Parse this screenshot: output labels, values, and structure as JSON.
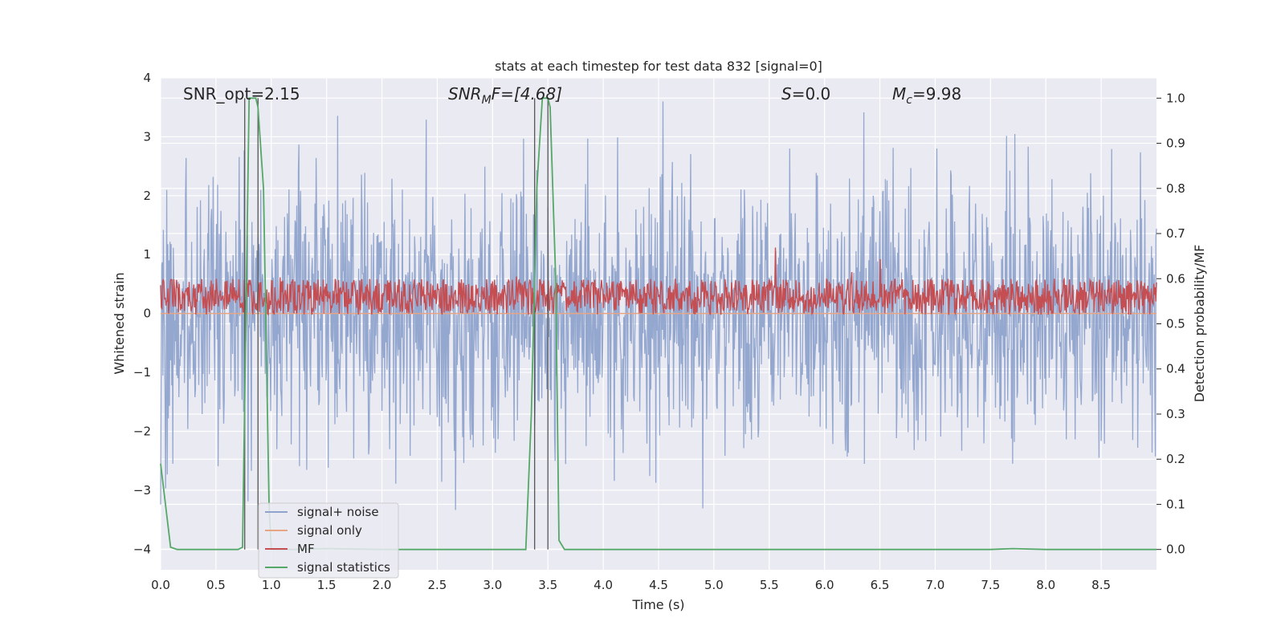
{
  "chart_data": {
    "type": "line",
    "title": "stats at each timestep for test data 832 [signal=0]",
    "xlabel": "Time (s)",
    "ylabel": "Whitened strain",
    "ylabel_right": "Detection probability/MF",
    "xlim": [
      0.0,
      9.0
    ],
    "ylim": [
      -4.35,
      4.0
    ],
    "ylim_right": [
      -0.045,
      1.045
    ],
    "x_ticks": [
      0.0,
      0.5,
      1.0,
      1.5,
      2.0,
      2.5,
      3.0,
      3.5,
      4.0,
      4.5,
      5.0,
      5.5,
      6.0,
      6.5,
      7.0,
      7.5,
      8.0,
      8.5
    ],
    "x_tick_labels": [
      "0.0",
      "0.5",
      "1.0",
      "1.5",
      "2.0",
      "2.5",
      "3.0",
      "3.5",
      "4.0",
      "4.5",
      "5.0",
      "5.5",
      "6.0",
      "6.5",
      "7.0",
      "7.5",
      "8.0",
      "8.5"
    ],
    "y_ticks": [
      -4,
      -3,
      -2,
      -1,
      0,
      1,
      2,
      3,
      4
    ],
    "y_tick_labels": [
      "−4",
      "−3",
      "−2",
      "−1",
      "0",
      "1",
      "2",
      "3",
      "4"
    ],
    "y_ticks_right": [
      0.0,
      0.1,
      0.2,
      0.3,
      0.4,
      0.5,
      0.6,
      0.7,
      0.8,
      0.9,
      1.0
    ],
    "y_tick_labels_right": [
      "0.0",
      "0.1",
      "0.2",
      "0.3",
      "0.4",
      "0.5",
      "0.6",
      "0.7",
      "0.8",
      "0.9",
      "1.0"
    ],
    "grid": true,
    "legend_position": "lower-left",
    "annotations": [
      {
        "text": "SNR_opt=2.15",
        "x": 0.2
      },
      {
        "text": "SNR_MF=[4.68]",
        "x": 2.6
      },
      {
        "text": "S=0.0",
        "x": 5.6
      },
      {
        "text": "M_c=9.98",
        "x": 6.6
      }
    ],
    "annotation_display": {
      "snr_opt": "SNR_opt=2.15",
      "snr_mf_main": "SNR",
      "snr_mf_sub": "M",
      "snr_mf_tail": "F=[4.68]",
      "s_main": "S",
      "s_tail": "=0.0",
      "mc_main": "M",
      "mc_sub": "c",
      "mc_tail": "=9.98"
    },
    "vertical_lines_x": [
      0.76,
      0.88,
      3.38,
      3.5
    ],
    "series": [
      {
        "name": "signal+ noise",
        "color": "#8fa3cc",
        "axis": "left",
        "kind": "noise",
        "x_range": [
          0.0,
          9.0
        ],
        "amplitude_typical": 1.1,
        "amplitude_peak": 3.6
      },
      {
        "name": "signal only",
        "color": "#e8a583",
        "axis": "left",
        "kind": "flat",
        "x": [
          0.0,
          9.0
        ],
        "y": [
          0.0,
          0.0
        ]
      },
      {
        "name": "MF",
        "color": "#c44e52",
        "axis": "right",
        "kind": "band",
        "x_range": [
          0.0,
          9.0
        ],
        "y_range": [
          0.52,
          0.6
        ],
        "y_peak": 0.68
      },
      {
        "name": "signal statistics",
        "color": "#55a868",
        "axis": "right",
        "kind": "line",
        "x": [
          0.0,
          0.09,
          0.15,
          0.3,
          0.5,
          0.7,
          0.74,
          0.8,
          0.86,
          0.88,
          0.93,
          0.98,
          1.0,
          1.2,
          1.5,
          2.0,
          2.5,
          3.0,
          3.3,
          3.35,
          3.4,
          3.45,
          3.5,
          3.52,
          3.57,
          3.6,
          3.65,
          4.0,
          5.0,
          6.0,
          7.0,
          7.5,
          7.7,
          8.0,
          8.5,
          9.0
        ],
        "y": [
          0.19,
          0.005,
          0.0,
          0.0,
          0.0,
          0.0,
          0.005,
          1.0,
          1.0,
          0.98,
          0.8,
          0.1,
          0.0,
          0.0,
          0.002,
          0.0,
          0.0,
          0.0,
          0.0,
          0.3,
          0.8,
          1.0,
          1.0,
          0.98,
          0.6,
          0.02,
          0.0,
          0.0,
          0.0,
          0.0,
          0.0,
          0.0,
          0.002,
          0.0,
          0.0,
          0.0
        ]
      }
    ]
  }
}
